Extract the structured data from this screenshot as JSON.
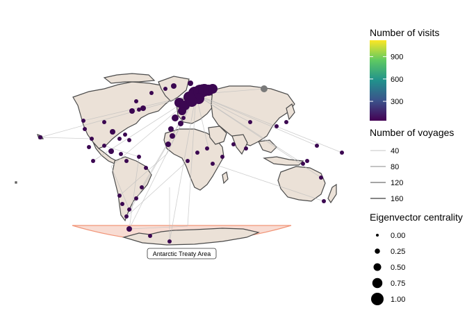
{
  "annotation": {
    "label": "Antarctic Treaty Area"
  },
  "legends": {
    "visits": {
      "title": "Number of visits",
      "ticks": [
        "900",
        "600",
        "300"
      ],
      "tick_values": [
        900,
        600,
        300
      ],
      "range": [
        40,
        1120
      ],
      "colors": [
        "#440154",
        "#3b528b",
        "#21918c",
        "#5ec962",
        "#fde725"
      ]
    },
    "voyages": {
      "title": "Number of voyages",
      "items": [
        {
          "label": "40",
          "color": "#d0d0d0"
        },
        {
          "label": "80",
          "color": "#a0a0a0"
        },
        {
          "label": "120",
          "color": "#6e6e6e"
        },
        {
          "label": "160",
          "color": "#3c3c3c"
        }
      ]
    },
    "centrality": {
      "title": "Eigenvector centrality",
      "items": [
        {
          "label": "0.00",
          "value": 0.0
        },
        {
          "label": "0.25",
          "value": 0.25
        },
        {
          "label": "0.50",
          "value": 0.5
        },
        {
          "label": "0.75",
          "value": 0.75
        },
        {
          "label": "1.00",
          "value": 1.0
        }
      ]
    }
  },
  "colors": {
    "land": "#ebe1d7",
    "border": "#4a4a4a",
    "antarctic_fill": "#f8d9cf",
    "antarctic_stroke": "#f08a6a",
    "port": "#3b0751",
    "port_highlight": "#7a7a7a"
  }
}
